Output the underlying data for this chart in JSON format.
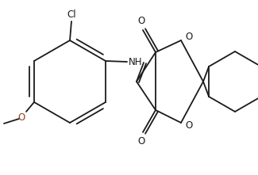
{
  "background_color": "#ffffff",
  "line_color": "#1a1a1a",
  "lw": 1.3,
  "figsize": [
    3.25,
    2.21
  ],
  "dpi": 100,
  "xlim": [
    0,
    325
  ],
  "ylim": [
    0,
    221
  ]
}
